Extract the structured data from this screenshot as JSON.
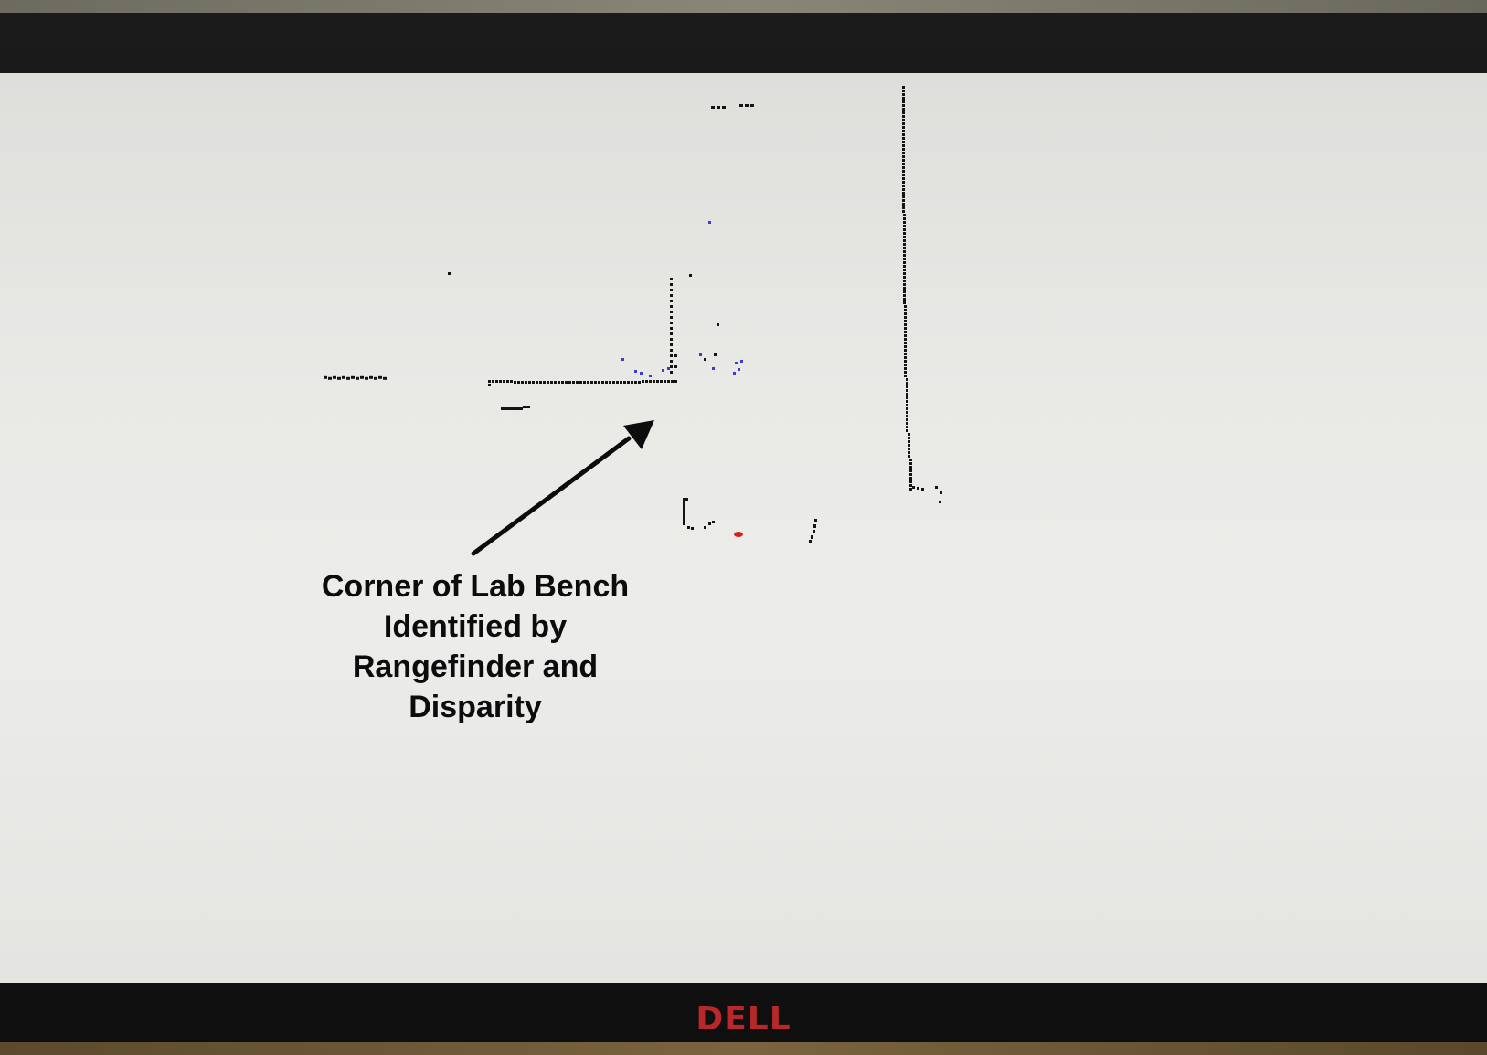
{
  "annotation": {
    "text": "Corner of Lab Bench Identified by Rangefinder and Disparity"
  },
  "monitor": {
    "brand": "DELL"
  },
  "colors": {
    "screen": "#e9e9e6",
    "range_points": "#141414",
    "disparity_points": "#3b3bd6",
    "robot_marker": "#d42020",
    "bezel": "#141414",
    "logo": "#b8272a"
  },
  "icons": {
    "arrow": "arrow-up-right-icon",
    "robot": "robot-position-marker-icon"
  }
}
